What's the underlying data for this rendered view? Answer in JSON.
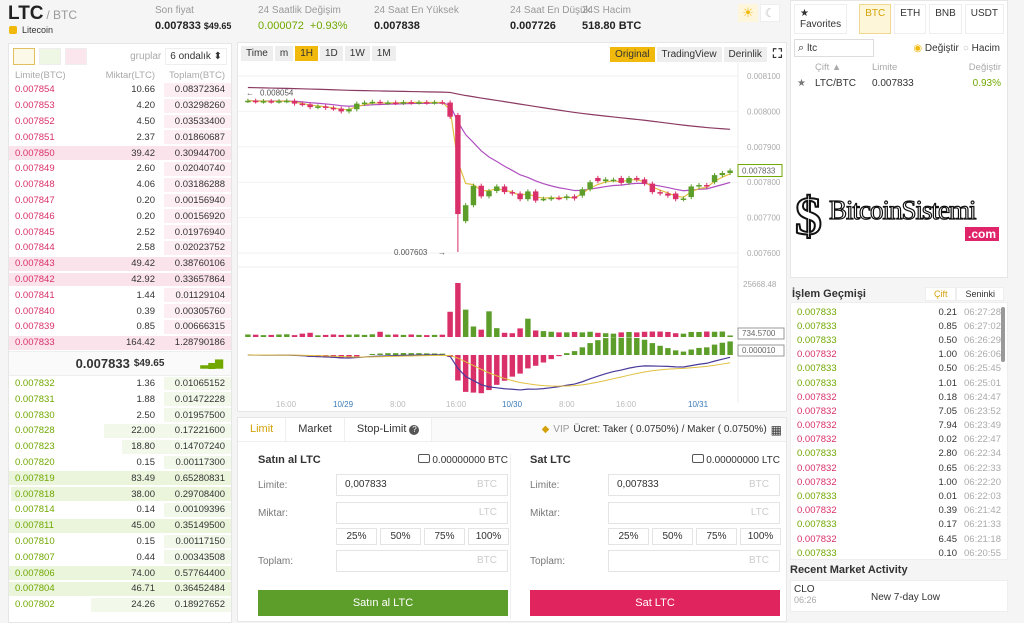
{
  "header": {
    "symbol": "LTC",
    "quote": "/ BTC",
    "name": "Litecoin",
    "stats": [
      {
        "label": "Son fiyat",
        "value": "0.007833",
        "extra": "$49.65"
      },
      {
        "label": "24 Saatlik Değişim",
        "value": "0.000072",
        "extra": "+0.93%"
      },
      {
        "label": "24 Saat En Yüksek",
        "value": "0.007838"
      },
      {
        "label": "24 Saat En Düşük",
        "value": "0.007726"
      },
      {
        "label": "24S Hacim",
        "value": "518.80 BTC"
      }
    ]
  },
  "colors": {
    "up": "#70a800",
    "down": "#d9306a",
    "accent": "#f0b90b",
    "buy": "#5d9e2b",
    "sell": "#e0245e"
  },
  "orderbook": {
    "group_label": "gruplar",
    "group_value": "6 ondalık ⬍",
    "headers": [
      "Limite(BTC)",
      "Miktar(LTC)",
      "Toplam(BTC)"
    ],
    "asks": [
      [
        "0.007854",
        "10.66",
        "0.08372364"
      ],
      [
        "0.007853",
        "4.20",
        "0.03298260"
      ],
      [
        "0.007852",
        "4.50",
        "0.03533400"
      ],
      [
        "0.007851",
        "2.37",
        "0.01860687"
      ],
      [
        "0.007850",
        "39.42",
        "0.30944700"
      ],
      [
        "0.007849",
        "2.60",
        "0.02040740"
      ],
      [
        "0.007848",
        "4.06",
        "0.03186288"
      ],
      [
        "0.007847",
        "0.20",
        "0.00156940"
      ],
      [
        "0.007846",
        "0.20",
        "0.00156920"
      ],
      [
        "0.007845",
        "2.52",
        "0.01976940"
      ],
      [
        "0.007844",
        "2.58",
        "0.02023752"
      ],
      [
        "0.007843",
        "49.42",
        "0.38760106"
      ],
      [
        "0.007842",
        "42.92",
        "0.33657864"
      ],
      [
        "0.007841",
        "1.44",
        "0.01129104"
      ],
      [
        "0.007840",
        "0.39",
        "0.00305760"
      ],
      [
        "0.007839",
        "0.85",
        "0.00666315"
      ],
      [
        "0.007833",
        "164.42",
        "1.28790186"
      ]
    ],
    "last_price": "0.007833",
    "last_usd": "$49.65",
    "bids": [
      [
        "0.007832",
        "1.36",
        "0.01065152"
      ],
      [
        "0.007831",
        "1.88",
        "0.01472228"
      ],
      [
        "0.007830",
        "2.50",
        "0.01957500"
      ],
      [
        "0.007828",
        "22.00",
        "0.17221600"
      ],
      [
        "0.007823",
        "18.80",
        "0.14707240"
      ],
      [
        "0.007820",
        "0.15",
        "0.00117300"
      ],
      [
        "0.007819",
        "83.49",
        "0.65280831"
      ],
      [
        "0.007818",
        "38.00",
        "0.29708400"
      ],
      [
        "0.007814",
        "0.14",
        "0.00109396"
      ],
      [
        "0.007811",
        "45.00",
        "0.35149500"
      ],
      [
        "0.007810",
        "0.15",
        "0.00117150"
      ],
      [
        "0.007807",
        "0.44",
        "0.00343508"
      ],
      [
        "0.007806",
        "74.00",
        "0.57764400"
      ],
      [
        "0.007804",
        "46.71",
        "0.36452484"
      ],
      [
        "0.007802",
        "24.26",
        "0.18927652"
      ]
    ]
  },
  "chart": {
    "toolbar": [
      "Time",
      "m",
      "1H",
      "1D",
      "1W",
      "1M"
    ],
    "views": [
      "Original",
      "TradingView",
      "Derinlik"
    ],
    "price_ticks": [
      "0.008100",
      "0.008000",
      "0.007900",
      "0.007800",
      "0.007700",
      "0.007600"
    ],
    "high_label": "0.008054",
    "low_label": "0.007603",
    "last_label": "0.007833",
    "vol_max_label": "25668.48",
    "vol_last_label": "734.5700",
    "macd_label": "0.000010",
    "time_labels": [
      "16:00",
      "10/29",
      "8:00",
      "16:00",
      "10/30",
      "8:00",
      "16:00",
      "10/31"
    ],
    "candles": [
      [
        0.00803,
        0.00803
      ],
      [
        0.00803,
        0.008028
      ],
      [
        0.008028,
        0.008029
      ],
      [
        0.008029,
        0.008028
      ],
      [
        0.008028,
        0.008029
      ],
      [
        0.008029,
        0.00803
      ],
      [
        0.00803,
        0.008022
      ],
      [
        0.008022,
        0.00802
      ],
      [
        0.00802,
        0.008012
      ],
      [
        0.008012,
        0.008014
      ],
      [
        0.008014,
        0.00801
      ],
      [
        0.00801,
        0.008008
      ],
      [
        0.008008,
        0.008
      ],
      [
        0.008,
        0.008006
      ],
      [
        0.008006,
        0.008022
      ],
      [
        0.008022,
        0.008025
      ],
      [
        0.008025,
        0.008027
      ],
      [
        0.008027,
        0.008024
      ],
      [
        0.008024,
        0.008025
      ],
      [
        0.008025,
        0.008024
      ],
      [
        0.008024,
        0.008026
      ],
      [
        0.008026,
        0.008025
      ],
      [
        0.008025,
        0.008026
      ],
      [
        0.008026,
        0.008025
      ],
      [
        0.008025,
        0.008026
      ],
      [
        0.008026,
        0.008025
      ],
      [
        0.008025,
        0.007985
      ],
      [
        0.00799,
        0.00771
      ],
      [
        0.00769,
        0.007735
      ],
      [
        0.007735,
        0.00779
      ],
      [
        0.00779,
        0.00776
      ],
      [
        0.00776,
        0.007775
      ],
      [
        0.007775,
        0.007788
      ],
      [
        0.007788,
        0.007772
      ],
      [
        0.007772,
        0.007768
      ],
      [
        0.007768,
        0.007752
      ],
      [
        0.007752,
        0.007774
      ],
      [
        0.007774,
        0.007748
      ],
      [
        0.007752,
        0.007753
      ],
      [
        0.007753,
        0.007756
      ],
      [
        0.007756,
        0.007755
      ],
      [
        0.007755,
        0.00776
      ],
      [
        0.00776,
        0.007754
      ],
      [
        0.007762,
        0.00778
      ],
      [
        0.00778,
        0.0078
      ],
      [
        0.007812,
        0.007803
      ],
      [
        0.007803,
        0.007808
      ],
      [
        0.007806,
        0.007807
      ],
      [
        0.007812,
        0.007798
      ],
      [
        0.007798,
        0.007812
      ],
      [
        0.007812,
        0.007807
      ],
      [
        0.007808,
        0.007796
      ],
      [
        0.007796,
        0.007772
      ],
      [
        0.007772,
        0.007768
      ],
      [
        0.007768,
        0.007762
      ],
      [
        0.007768,
        0.007752
      ],
      [
        0.007752,
        0.007754
      ],
      [
        0.007758,
        0.007788
      ],
      [
        0.007788,
        0.007792
      ],
      [
        0.007792,
        0.007788
      ],
      [
        0.0078,
        0.00782
      ],
      [
        0.00782,
        0.007826
      ],
      [
        0.007826,
        0.007833
      ]
    ],
    "volumes": [
      1200,
      1100,
      900,
      1000,
      1200,
      1300,
      900,
      1600,
      2000,
      800,
      1000,
      1200,
      1000,
      1100,
      1200,
      1000,
      1300,
      2500,
      1100,
      1200,
      1000,
      1200,
      1000,
      900,
      1000,
      1100,
      12000,
      25668,
      13000,
      5000,
      3500,
      12200,
      4200,
      2000,
      1800,
      4100,
      8700,
      3100,
      2800,
      2500,
      2200,
      2200,
      2400,
      2200,
      2500,
      2000,
      1800,
      1600,
      2200,
      2400,
      2200,
      2500,
      2600,
      2600,
      2400,
      1800,
      1600,
      2400,
      2400,
      2600,
      2500,
      2600,
      734
    ]
  },
  "trade": {
    "tabs": [
      "Limit",
      "Market",
      "Stop-Limit"
    ],
    "vip": "VIP",
    "fee": "Ücret: Taker ( 0.0750%) / Maker ( 0.0750%)",
    "buy": {
      "title": "Satın al LTC",
      "balance": "0.00000000 BTC",
      "limit_label": "Limite:",
      "limit_value": "0,007833",
      "limit_unit": "BTC",
      "amount_label": "Miktar:",
      "amount_unit": "LTC",
      "total_label": "Toplam:",
      "total_unit": "BTC",
      "button": "Satın al LTC"
    },
    "sell": {
      "title": "Sat LTC",
      "balance": "0.00000000 LTC",
      "limit_label": "Limite:",
      "limit_value": "0,007833",
      "limit_unit": "BTC",
      "amount_label": "Miktar:",
      "amount_unit": "LTC",
      "total_label": "Toplam:",
      "total_unit": "BTC",
      "button": "Sat LTC"
    },
    "percents": [
      "25%",
      "50%",
      "75%",
      "100%"
    ]
  },
  "markets": {
    "favorites": "Favorites",
    "tabs": [
      "BTC",
      "ETH",
      "BNB",
      "USDT"
    ],
    "search_value": "ltc",
    "radio": [
      "Değiştir",
      "Hacim"
    ],
    "headers": [
      "Çift ▲",
      "Limite",
      "Değiştir"
    ],
    "rows": [
      [
        "LTC/BTC",
        "0.007833",
        "0.93%"
      ]
    ]
  },
  "history": {
    "title": "İşlem Geçmişi",
    "tabs": [
      "Çift",
      "Seninki"
    ],
    "rows": [
      [
        "0.007833",
        "0.21",
        "06:27:28",
        "up"
      ],
      [
        "0.007833",
        "0.85",
        "06:27:02",
        "up"
      ],
      [
        "0.007833",
        "0.50",
        "06:26:29",
        "up"
      ],
      [
        "0.007832",
        "1.00",
        "06:26:06",
        "down"
      ],
      [
        "0.007833",
        "0.50",
        "06:25:45",
        "up"
      ],
      [
        "0.007833",
        "1.01",
        "06:25:01",
        "up"
      ],
      [
        "0.007832",
        "0.18",
        "06:24:47",
        "down"
      ],
      [
        "0.007832",
        "7.05",
        "06:23:52",
        "down"
      ],
      [
        "0.007832",
        "7.94",
        "06:23:49",
        "down"
      ],
      [
        "0.007832",
        "0.02",
        "06:22:47",
        "down"
      ],
      [
        "0.007833",
        "2.80",
        "06:22:34",
        "up"
      ],
      [
        "0.007832",
        "0.65",
        "06:22:33",
        "down"
      ],
      [
        "0.007832",
        "1.00",
        "06:22:20",
        "down"
      ],
      [
        "0.007833",
        "0.01",
        "06:22:03",
        "up"
      ],
      [
        "0.007832",
        "0.39",
        "06:21:42",
        "down"
      ],
      [
        "0.007833",
        "0.17",
        "06:21:33",
        "up"
      ],
      [
        "0.007832",
        "6.45",
        "06:21:18",
        "down"
      ],
      [
        "0.007833",
        "0.10",
        "06:20:55",
        "up"
      ]
    ]
  },
  "activity": {
    "title": "Recent Market Activity",
    "item_symbol": "CLO",
    "item_time": "06:26",
    "item_text": "New 7-day Low"
  },
  "watermark": {
    "text": "BitcoinSistemi",
    "tld": ".com"
  }
}
